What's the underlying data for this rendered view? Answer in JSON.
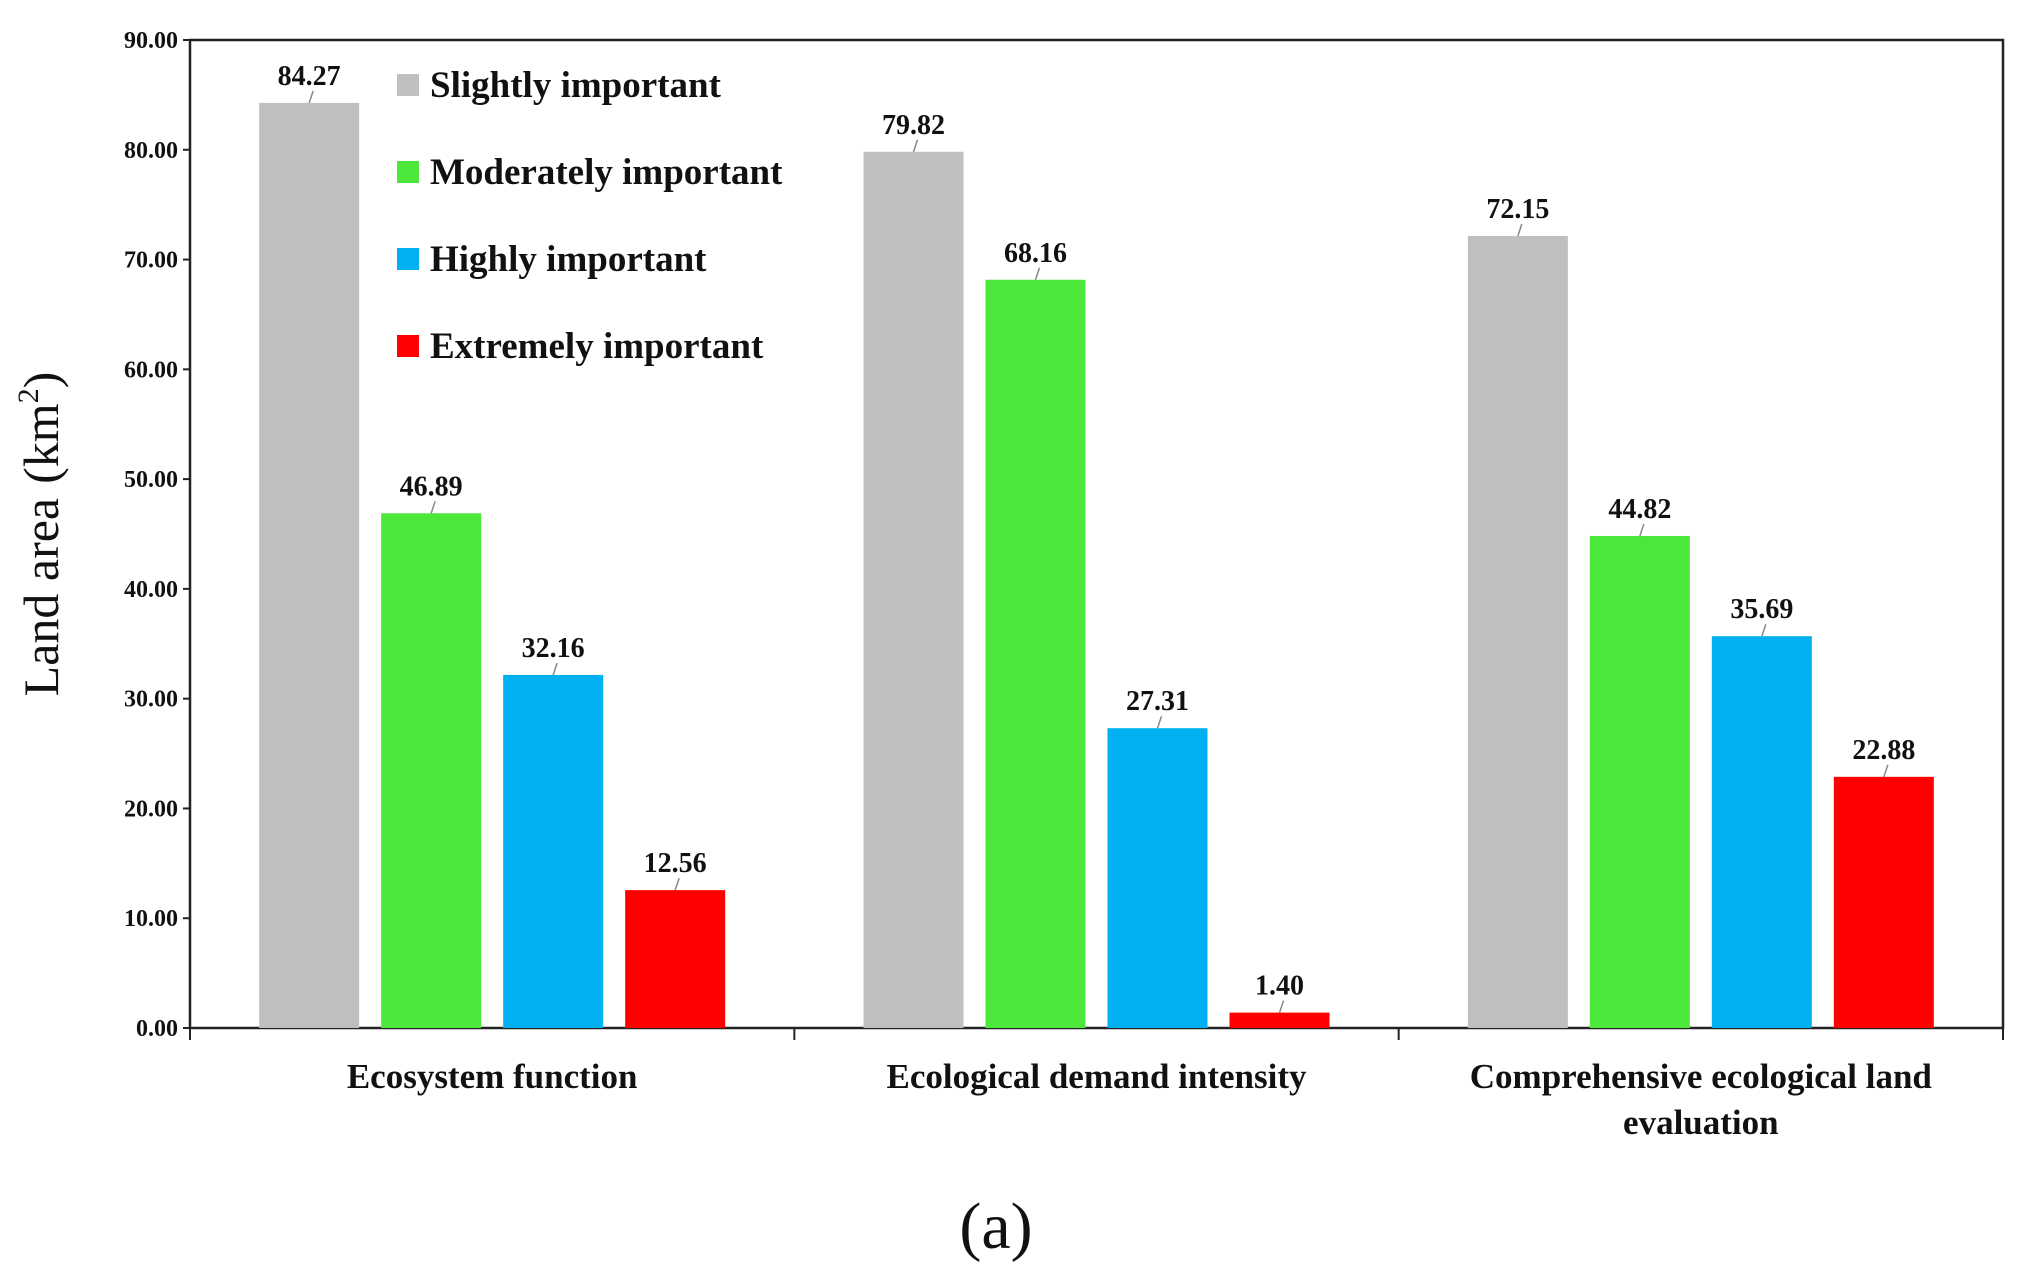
{
  "chart_data": {
    "type": "bar",
    "title": "",
    "panel_label": "(a)",
    "categories": [
      [
        "Ecosystem function"
      ],
      [
        "Ecological demand intensity"
      ],
      [
        "Comprehensive ecological land",
        "evaluation"
      ]
    ],
    "series": [
      {
        "name": "Slightly important",
        "color": "#bfbfbf",
        "values": [
          84.27,
          79.82,
          72.15
        ]
      },
      {
        "name": "Moderately important",
        "color": "#4de63a",
        "values": [
          46.89,
          68.16,
          44.82
        ]
      },
      {
        "name": "Highly important",
        "color": "#00b0f0",
        "values": [
          32.16,
          27.31,
          35.69
        ]
      },
      {
        "name": "Extremely important",
        "color": "#ff0000",
        "values": [
          12.56,
          1.4,
          22.88
        ]
      }
    ],
    "xlabel": "",
    "ylabel_text": "Land area",
    "ylabel_unit": "km",
    "ylabel_exponent": "2",
    "ylim": [
      0,
      90
    ],
    "yticks": [
      "0.00",
      "10.00",
      "20.00",
      "30.00",
      "40.00",
      "50.00",
      "60.00",
      "70.00",
      "80.00",
      "90.00"
    ],
    "legend_position": "top-left inside",
    "grid": false
  }
}
